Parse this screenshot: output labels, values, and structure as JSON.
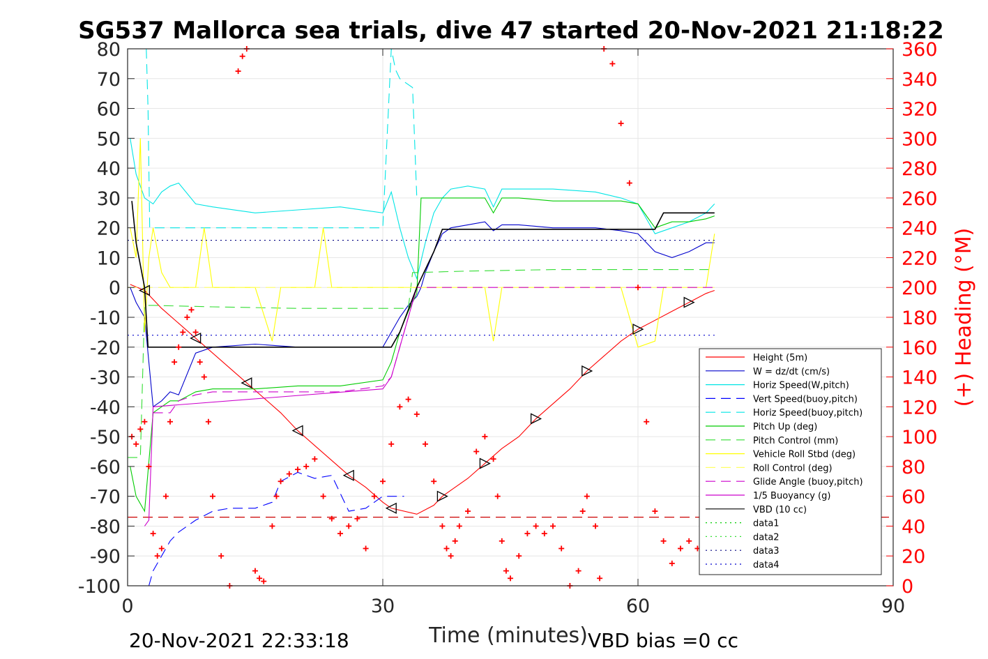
{
  "chart_data": {
    "type": "line",
    "title": "SG537 Mallorca sea trials, dive 47 started 20-Nov-2021 21:18:22",
    "xlabel": "Time (minutes)",
    "ylabel": "",
    "y2label": "(+) Heading (°M)",
    "xlim": [
      0,
      90
    ],
    "ylim": [
      -100,
      80
    ],
    "y2lim": [
      0,
      360
    ],
    "xticks": [
      "0",
      "30",
      "60",
      "90"
    ],
    "yticks": [
      "80",
      "70",
      "60",
      "50",
      "40",
      "30",
      "20",
      "10",
      "0",
      "-10",
      "-20",
      "-30",
      "-40",
      "-50",
      "-60",
      "-70",
      "-80",
      "-90",
      "-100"
    ],
    "y2ticks": [
      "360",
      "340",
      "320",
      "300",
      "280",
      "260",
      "240",
      "220",
      "200",
      "180",
      "160",
      "140",
      "120",
      "100",
      "80",
      "60",
      "40",
      "20",
      "0"
    ],
    "grid": true,
    "legend_position": "lower-right",
    "footer_left": "20-Nov-2021 22:33:18",
    "footer_right": "VBD bias =0 cc",
    "series": [
      {
        "name": "Height (5m)",
        "color": "#ff0000",
        "style": "solid",
        "x": [
          0.3,
          2,
          4,
          6,
          8,
          10,
          12,
          14,
          16,
          18,
          20,
          22,
          24,
          26,
          28,
          30,
          31,
          34,
          36,
          37,
          38,
          40,
          42,
          44,
          46,
          48,
          50,
          52,
          54,
          56,
          58,
          60,
          62,
          64,
          66,
          68,
          69
        ],
        "y": [
          1,
          -1,
          -7,
          -12,
          -17,
          -22,
          -27,
          -32,
          -37,
          -42,
          -48,
          -53,
          -58,
          -63,
          -67,
          -72,
          -74,
          -76,
          -73,
          -70,
          -68,
          -64,
          -59,
          -54,
          -50,
          -44,
          -39,
          -34,
          -28,
          -23,
          -18,
          -14,
          -11,
          -8,
          -5,
          -2,
          -1
        ]
      },
      {
        "name": "W = dz/dt (cm/s)",
        "color": "#0000cc",
        "style": "solid",
        "x": [
          0.3,
          1,
          2,
          2.5,
          3,
          4,
          5,
          6,
          8,
          10,
          15,
          20,
          25,
          30,
          31,
          32,
          33,
          34,
          34.5,
          35,
          36,
          37,
          38,
          40,
          42,
          43,
          44,
          46,
          50,
          55,
          58,
          60,
          61,
          62,
          64,
          66,
          68,
          69
        ],
        "y": [
          0,
          -5,
          -10,
          -25,
          -40,
          -38,
          -35,
          -36,
          -22,
          -20,
          -19,
          -20,
          -20,
          -20,
          -15,
          -10,
          -6,
          -3,
          0,
          5,
          12,
          18,
          20,
          21,
          22,
          19,
          21,
          21,
          20,
          20,
          19,
          18,
          15,
          12,
          10,
          12,
          15,
          15
        ]
      },
      {
        "name": "Horiz Speed(W,pitch)",
        "color": "#00e5e5",
        "style": "solid",
        "x": [
          0.3,
          1,
          2,
          3,
          4,
          5,
          6,
          8,
          10,
          15,
          20,
          25,
          30,
          31,
          32,
          33,
          34,
          35,
          36,
          37,
          38,
          40,
          42,
          43,
          44,
          46,
          50,
          55,
          58,
          60,
          62,
          64,
          66,
          68,
          69
        ],
        "y": [
          50,
          38,
          30,
          28,
          32,
          34,
          35,
          28,
          27,
          25,
          26,
          27,
          25,
          32,
          20,
          10,
          3,
          15,
          25,
          30,
          33,
          34,
          33,
          27,
          33,
          33,
          33,
          32,
          30,
          28,
          18,
          20,
          22,
          25,
          28
        ]
      },
      {
        "name": "Vert Speed(buoy,pitch)",
        "color": "#0000ff",
        "style": "dashed",
        "x": [
          2.5,
          3,
          4,
          5,
          6,
          8,
          10,
          12,
          15,
          17,
          18,
          20,
          22,
          24,
          26,
          28,
          29,
          30,
          31,
          32,
          32.5
        ],
        "y": [
          -100,
          -95,
          -90,
          -85,
          -82,
          -78,
          -75,
          -74,
          -74,
          -72,
          -65,
          -62,
          -64,
          -63,
          -75,
          -74,
          -72,
          -70,
          -70,
          -70,
          -70
        ]
      },
      {
        "name": "Horiz Speed(buoy,pitch)",
        "color": "#00e5e5",
        "style": "dashed",
        "x": [
          2.2,
          2.4,
          2.6,
          30,
          31,
          31.5,
          32,
          33,
          33.5,
          34
        ],
        "y": [
          80,
          60,
          20,
          20,
          80,
          73,
          70,
          68,
          67,
          30
        ]
      },
      {
        "name": "Pitch Up (deg)",
        "color": "#00cc00",
        "style": "solid",
        "x": [
          0.3,
          1,
          2,
          3,
          4,
          5,
          6,
          8,
          10,
          15,
          20,
          25,
          30,
          31,
          32,
          33,
          34,
          34.5,
          35,
          36,
          38,
          40,
          42,
          43,
          44,
          46,
          50,
          55,
          58,
          60,
          62,
          64,
          66,
          68,
          69
        ],
        "y": [
          -60,
          -70,
          -75,
          -42,
          -40,
          -38,
          -38,
          -35,
          -34,
          -34,
          -33,
          -33,
          -31,
          -25,
          -15,
          -8,
          -2,
          30,
          30,
          30,
          30,
          30,
          30,
          25,
          30,
          30,
          29,
          29,
          29,
          28,
          20,
          22,
          22,
          23,
          24
        ]
      },
      {
        "name": "Pitch Control (mm)",
        "color": "#33dd33",
        "style": "dashed",
        "x": [
          0,
          1.5,
          2,
          3,
          10,
          20,
          28,
          30,
          33,
          33.5,
          34,
          40,
          50,
          60,
          69
        ],
        "y": [
          -57,
          -57,
          -6,
          -6,
          -6.5,
          -7,
          -7,
          -7,
          -7,
          5,
          5,
          5.5,
          6,
          6,
          6
        ]
      },
      {
        "name": "Vehicle Roll Stbd (deg)",
        "color": "#ffff00",
        "style": "solid",
        "x": [
          0.3,
          1,
          1.5,
          2,
          2.5,
          3,
          4,
          5,
          6,
          8,
          9,
          10,
          12,
          15,
          17,
          18,
          20,
          22,
          23,
          24,
          25,
          28,
          30,
          34,
          36,
          38,
          40,
          42,
          43,
          44,
          50,
          54,
          56,
          58,
          60,
          62,
          63,
          66,
          68,
          69
        ],
        "y": [
          20,
          10,
          50,
          -15,
          10,
          20,
          5,
          0,
          0,
          0,
          20,
          0,
          0,
          0,
          -18,
          0,
          0,
          0,
          20,
          0,
          0,
          0,
          0,
          0,
          0,
          0,
          0,
          0,
          -18,
          0,
          0,
          0,
          0,
          0,
          -20,
          -18,
          0,
          0,
          0,
          18
        ]
      },
      {
        "name": "Roll Control (deg)",
        "color": "#ffff66",
        "style": "dashed",
        "x": [
          0,
          69
        ],
        "y": [
          0,
          0
        ]
      },
      {
        "name": "Glide Angle (buoy,pitch)",
        "color": "#cc00cc",
        "style": "dashed",
        "x": [
          3,
          5,
          6,
          8,
          10,
          15,
          20,
          25,
          30,
          31,
          34,
          40,
          50,
          60,
          69
        ],
        "y": [
          -42,
          -42,
          -38,
          -36,
          -35,
          -35,
          -35,
          -35,
          -33,
          -30,
          0,
          0,
          0,
          0,
          0
        ]
      },
      {
        "name": "1/5 Buoyancy (g)",
        "color": "#cc00cc",
        "style": "solid",
        "x": [
          2,
          2.5,
          3,
          30,
          31,
          32,
          33,
          33.5,
          34
        ],
        "y": [
          -80,
          -78,
          -40,
          -34,
          -30,
          -20,
          -10,
          -5,
          0
        ]
      },
      {
        "name": "VBD (10 cc)",
        "color": "#000000",
        "style": "solid",
        "x": [
          0.5,
          1,
          2,
          2.4,
          5,
          10,
          20,
          31,
          32,
          34,
          36,
          37,
          40,
          50,
          60,
          62,
          63,
          69
        ],
        "y": [
          29,
          15,
          0,
          -20,
          -20,
          -20,
          -20,
          -20,
          -15,
          0,
          12,
          19.5,
          19.5,
          19.5,
          19.5,
          19.5,
          25,
          25
        ]
      },
      {
        "name": "data1",
        "color": "#00cc00",
        "style": "dotted",
        "x": [],
        "y": []
      },
      {
        "name": "data2",
        "color": "#33dd33",
        "style": "dotted",
        "x": [],
        "y": []
      },
      {
        "name": "data3",
        "color": "#000080",
        "style": "dotted",
        "x": [
          0,
          69
        ],
        "y": [
          15.8,
          15.8
        ]
      },
      {
        "name": "data4",
        "color": "#0000cc",
        "style": "dotted",
        "x": [
          0,
          69
        ],
        "y": [
          -16,
          -16
        ]
      }
    ],
    "reference_line": {
      "color": "#cc0000",
      "style": "dashed",
      "x": [
        0,
        90
      ],
      "y": [
        -77,
        -77
      ]
    },
    "heading": {
      "color": "#ff0000",
      "marker": "+",
      "x": [
        0.5,
        1,
        1.5,
        2,
        2.5,
        3,
        3.5,
        4,
        4.5,
        5,
        5.5,
        6,
        6.5,
        7,
        7.5,
        8,
        8.5,
        9,
        9.5,
        10,
        11,
        12,
        13,
        13.5,
        14,
        15,
        15.5,
        16,
        17,
        17.5,
        18,
        19,
        20,
        21,
        22,
        23,
        24,
        25,
        26,
        27,
        28,
        29,
        30,
        31,
        32,
        33,
        34,
        35,
        36,
        37,
        37.5,
        38,
        38.5,
        39,
        40,
        41,
        42,
        43,
        43.5,
        44,
        44.5,
        45,
        46,
        47,
        48,
        49,
        50,
        51,
        52,
        53,
        53.5,
        54,
        55,
        55.5,
        56,
        57,
        58,
        59,
        60,
        61,
        62,
        63,
        64,
        65,
        66,
        67,
        68
      ],
      "y": [
        100,
        95,
        105,
        110,
        80,
        35,
        20,
        25,
        60,
        110,
        150,
        160,
        170,
        180,
        185,
        170,
        150,
        140,
        110,
        60,
        20,
        0,
        345,
        355,
        360,
        10,
        5,
        3,
        40,
        60,
        70,
        75,
        78,
        80,
        85,
        60,
        45,
        35,
        40,
        45,
        25,
        60,
        70,
        95,
        120,
        125,
        115,
        95,
        70,
        40,
        25,
        20,
        30,
        40,
        50,
        90,
        100,
        85,
        60,
        30,
        10,
        5,
        20,
        35,
        40,
        35,
        40,
        25,
        0,
        10,
        50,
        60,
        40,
        5,
        360,
        350,
        310,
        270,
        200,
        110,
        50,
        30,
        15,
        25,
        30,
        25,
        20
      ]
    }
  }
}
